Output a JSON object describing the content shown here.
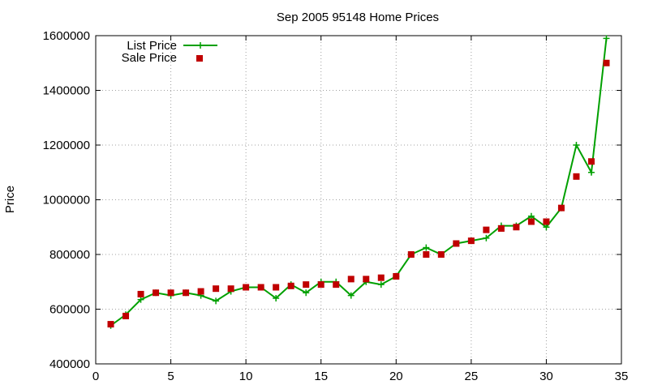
{
  "chart_data": {
    "type": "line",
    "title": "Sep 2005 95148 Home Prices",
    "xlabel": "",
    "ylabel": "Price",
    "xlim": [
      0,
      35
    ],
    "ylim": [
      400000,
      1600000
    ],
    "xticks": [
      "0",
      "5",
      "10",
      "15",
      "20",
      "25",
      "30",
      "35"
    ],
    "yticks": [
      "400000",
      "600000",
      "800000",
      "1000000",
      "1200000",
      "1400000",
      "1600000"
    ],
    "grid": true,
    "legend_position": "top-left",
    "x": [
      1,
      2,
      3,
      4,
      5,
      6,
      7,
      8,
      9,
      10,
      11,
      12,
      13,
      14,
      15,
      16,
      17,
      18,
      19,
      20,
      21,
      22,
      23,
      24,
      25,
      26,
      27,
      28,
      29,
      30,
      31,
      32,
      33,
      34
    ],
    "series": [
      {
        "name": "List Price",
        "color": "#00a000",
        "marker": "plus",
        "line": true,
        "values": [
          540000,
          580000,
          635000,
          660000,
          650000,
          660000,
          650000,
          630000,
          665000,
          680000,
          680000,
          640000,
          690000,
          660000,
          700000,
          700000,
          650000,
          700000,
          690000,
          720000,
          800000,
          825000,
          800000,
          840000,
          850000,
          860000,
          905000,
          905000,
          940000,
          900000,
          970000,
          1200000,
          1100000,
          1590000
        ]
      },
      {
        "name": "Sale Price",
        "color": "#c00000",
        "marker": "square",
        "line": false,
        "values": [
          545000,
          575000,
          655000,
          660000,
          660000,
          660000,
          665000,
          675000,
          675000,
          680000,
          680000,
          680000,
          685000,
          690000,
          690000,
          690000,
          710000,
          710000,
          715000,
          720000,
          800000,
          800000,
          800000,
          840000,
          850000,
          890000,
          895000,
          900000,
          920000,
          920000,
          970000,
          1085000,
          1140000,
          1500000
        ]
      }
    ]
  }
}
